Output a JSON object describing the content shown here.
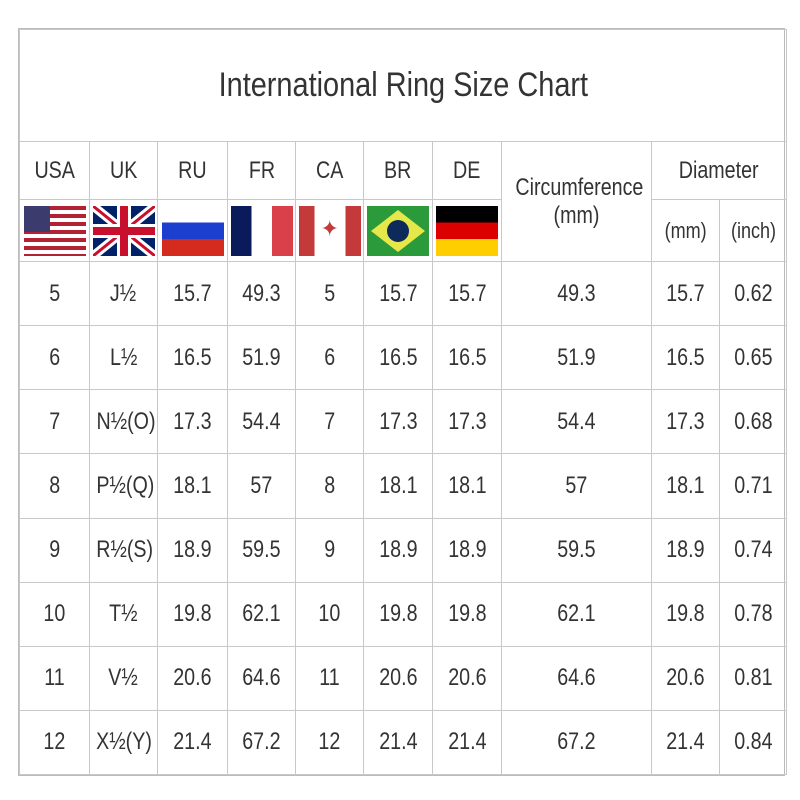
{
  "title": "International Ring Size Chart",
  "headers": [
    "USA",
    "UK",
    "RU",
    "FR",
    "CA",
    "BR",
    "DE"
  ],
  "circumference": {
    "label": "Circumference",
    "unit": "(mm)"
  },
  "diameter": {
    "label": "Diameter",
    "units": [
      "(mm)",
      "(inch)"
    ]
  },
  "flags": [
    "us-flag-icon",
    "uk-flag-icon",
    "russia-flag-icon",
    "france-flag-icon",
    "canada-flag-icon",
    "brazil-flag-icon",
    "germany-flag-icon"
  ],
  "rows": [
    [
      "5",
      "J½",
      "15.7",
      "49.3",
      "5",
      "15.7",
      "15.7",
      "49.3",
      "15.7",
      "0.62"
    ],
    [
      "6",
      "L½",
      "16.5",
      "51.9",
      "6",
      "16.5",
      "16.5",
      "51.9",
      "16.5",
      "0.65"
    ],
    [
      "7",
      "N½(O)",
      "17.3",
      "54.4",
      "7",
      "17.3",
      "17.3",
      "54.4",
      "17.3",
      "0.68"
    ],
    [
      "8",
      "P½(Q)",
      "18.1",
      "57",
      "8",
      "18.1",
      "18.1",
      "57",
      "18.1",
      "0.71"
    ],
    [
      "9",
      "R½(S)",
      "18.9",
      "59.5",
      "9",
      "18.9",
      "18.9",
      "59.5",
      "18.9",
      "0.74"
    ],
    [
      "10",
      "T½",
      "19.8",
      "62.1",
      "10",
      "19.8",
      "19.8",
      "62.1",
      "19.8",
      "0.78"
    ],
    [
      "11",
      "V½",
      "20.6",
      "64.6",
      "11",
      "20.6",
      "20.6",
      "64.6",
      "20.6",
      "0.81"
    ],
    [
      "12",
      "X½(Y)",
      "21.4",
      "67.2",
      "12",
      "21.4",
      "21.4",
      "67.2",
      "21.4",
      "0.84"
    ]
  ]
}
